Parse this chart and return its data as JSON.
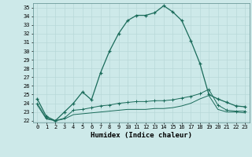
{
  "xlabel": "Humidex (Indice chaleur)",
  "background_color": "#cde9e9",
  "grid_color": "#b8d8d8",
  "line_color": "#1a6b5a",
  "xlim": [
    -0.5,
    23.5
  ],
  "ylim": [
    21.8,
    35.5
  ],
  "yticks": [
    22,
    23,
    24,
    25,
    26,
    27,
    28,
    29,
    30,
    31,
    32,
    33,
    34,
    35
  ],
  "xticks": [
    0,
    1,
    2,
    3,
    4,
    5,
    6,
    7,
    8,
    9,
    10,
    11,
    12,
    13,
    14,
    15,
    16,
    17,
    18,
    19,
    20,
    21,
    22,
    23
  ],
  "series1": [
    24.5,
    22.5,
    22.0,
    23.0,
    24.0,
    25.3,
    24.4,
    27.5,
    30.0,
    32.0,
    33.5,
    34.1,
    34.1,
    34.4,
    35.2,
    34.5,
    33.5,
    31.2,
    28.6,
    25.0,
    24.5,
    24.1,
    23.7,
    23.6
  ],
  "series2": [
    24.0,
    22.3,
    22.0,
    22.3,
    23.2,
    23.3,
    23.5,
    23.7,
    23.8,
    24.0,
    24.1,
    24.2,
    24.2,
    24.3,
    24.3,
    24.4,
    24.6,
    24.8,
    25.1,
    25.6,
    23.8,
    23.2,
    23.1,
    23.1
  ],
  "series3": [
    23.8,
    22.2,
    22.0,
    22.2,
    22.7,
    22.8,
    22.9,
    23.0,
    23.1,
    23.2,
    23.3,
    23.3,
    23.3,
    23.4,
    23.4,
    23.5,
    23.7,
    24.0,
    24.5,
    24.9,
    23.3,
    23.0,
    23.0,
    22.9
  ]
}
